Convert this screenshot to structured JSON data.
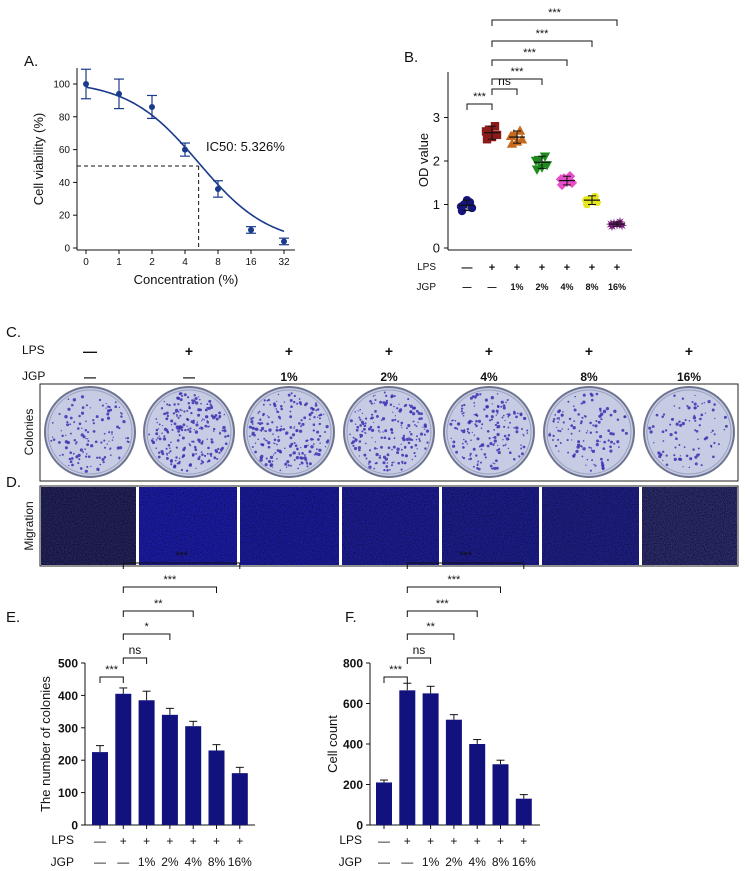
{
  "panel_labels": {
    "a": "A.",
    "b": "B.",
    "c": "C.",
    "d": "D.",
    "e": "E.",
    "f": "F."
  },
  "treatment_labels": {
    "lps_label": "LPS",
    "jgp_label": "JGP",
    "lps": [
      "—",
      "+",
      "+",
      "+",
      "+",
      "+",
      "+"
    ],
    "jgp": [
      "—",
      "—",
      "1%",
      "2%",
      "4%",
      "8%",
      "16%"
    ]
  },
  "row_labels": {
    "colonies": "Colonies",
    "migration": "Migration"
  },
  "colors": {
    "navy": "#12127e",
    "blue_curve": "#1a3a8c",
    "plate_fill": "#c6cce4",
    "plate_edge": "#6f7590",
    "dot": "#3b2fb0"
  },
  "chart_data": [
    {
      "id": "A",
      "type": "scatter",
      "title": "",
      "xlabel": "Concentration (%)",
      "ylabel": "Cell viability (%)",
      "x": [
        "0",
        "1",
        "2",
        "4",
        "8",
        "16",
        "32"
      ],
      "y": [
        100,
        94,
        86,
        60,
        36,
        11,
        4
      ],
      "err": [
        9,
        9,
        7,
        4,
        5,
        2,
        2
      ],
      "fit": "sigmoid decreasing",
      "ylim": [
        0,
        110
      ],
      "yticks": [
        "0",
        "20",
        "40",
        "60",
        "80",
        "100"
      ],
      "annotation": "IC50: 5.326%",
      "ic50": 5.326,
      "ic50_y": 50
    },
    {
      "id": "B",
      "type": "scatter",
      "ylabel": "OD value",
      "ylim": [
        0,
        3.5
      ],
      "yticks": [
        "0",
        "1",
        "2",
        "3"
      ],
      "groups": [
        {
          "mean": 0.98,
          "err": 0.12,
          "points": [
            0.85,
            0.92,
            1.0,
            1.05,
            1.1,
            0.95
          ],
          "color": "#14147a",
          "marker": "circle"
        },
        {
          "mean": 2.65,
          "err": 0.15,
          "points": [
            2.5,
            2.6,
            2.72,
            2.8,
            2.55,
            2.68
          ],
          "color": "#8b1a1a",
          "marker": "square"
        },
        {
          "mean": 2.55,
          "err": 0.14,
          "points": [
            2.4,
            2.5,
            2.62,
            2.7,
            2.45,
            2.58
          ],
          "color": "#c86a1e",
          "marker": "triangle"
        },
        {
          "mean": 1.97,
          "err": 0.14,
          "points": [
            1.8,
            1.9,
            2.02,
            2.1,
            1.85,
            2.0
          ],
          "color": "#1f8a1f",
          "marker": "triangle-down"
        },
        {
          "mean": 1.55,
          "err": 0.1,
          "points": [
            1.45,
            1.5,
            1.6,
            1.65,
            1.52,
            1.58
          ],
          "color": "#e64fc8",
          "marker": "diamond"
        },
        {
          "mean": 1.1,
          "err": 0.1,
          "points": [
            1.0,
            1.05,
            1.12,
            1.18,
            1.08,
            1.1
          ],
          "color": "#e6e61a",
          "marker": "hexagon"
        },
        {
          "mean": 0.55,
          "err": 0.05,
          "points": [
            0.5,
            0.52,
            0.56,
            0.6,
            0.54,
            0.55
          ],
          "color": "#7a1a7a",
          "marker": "star"
        }
      ],
      "sig": [
        {
          "from": 0,
          "to": 1,
          "label": "***"
        },
        {
          "from": 1,
          "to": 2,
          "label": "ns"
        },
        {
          "from": 1,
          "to": 3,
          "label": "***"
        },
        {
          "from": 1,
          "to": 4,
          "label": "***"
        },
        {
          "from": 1,
          "to": 5,
          "label": "***"
        },
        {
          "from": 1,
          "to": 6,
          "label": "***"
        }
      ]
    },
    {
      "id": "E",
      "type": "bar",
      "ylabel": "The number of colonies",
      "ylim": [
        0,
        500
      ],
      "yticks": [
        "0",
        "100",
        "200",
        "300",
        "400",
        "500"
      ],
      "values": [
        225,
        405,
        385,
        340,
        305,
        230,
        160
      ],
      "err": [
        20,
        18,
        28,
        20,
        15,
        18,
        18
      ],
      "sig": [
        {
          "from": 0,
          "to": 1,
          "label": "***"
        },
        {
          "from": 1,
          "to": 2,
          "label": "ns"
        },
        {
          "from": 1,
          "to": 3,
          "label": "*"
        },
        {
          "from": 1,
          "to": 4,
          "label": "**"
        },
        {
          "from": 1,
          "to": 5,
          "label": "***"
        },
        {
          "from": 1,
          "to": 6,
          "label": "***"
        }
      ]
    },
    {
      "id": "F",
      "type": "bar",
      "ylabel": "Cell count",
      "ylim": [
        0,
        800
      ],
      "yticks": [
        "0",
        "200",
        "400",
        "600",
        "800"
      ],
      "values": [
        210,
        665,
        650,
        520,
        400,
        300,
        130
      ],
      "err": [
        12,
        35,
        35,
        25,
        22,
        20,
        20
      ],
      "sig": [
        {
          "from": 0,
          "to": 1,
          "label": "***"
        },
        {
          "from": 1,
          "to": 2,
          "label": "ns"
        },
        {
          "from": 1,
          "to": 3,
          "label": "**"
        },
        {
          "from": 1,
          "to": 4,
          "label": "***"
        },
        {
          "from": 1,
          "to": 5,
          "label": "***"
        },
        {
          "from": 1,
          "to": 6,
          "label": "***"
        }
      ]
    }
  ]
}
